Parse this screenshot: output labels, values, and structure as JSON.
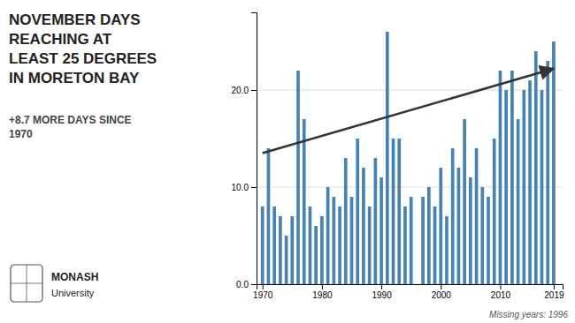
{
  "chart_data": {
    "type": "bar",
    "title": "NOVEMBER DAYS\nREACHING AT\nLEAST 25 DEGREES\nIN MORETON BAY",
    "subtitle": "+8.7 MORE DAYS SINCE\n1970",
    "annotations": [
      "Missing years: 1996",
      "MONASH",
      "University"
    ],
    "x": [
      1970,
      1971,
      1972,
      1973,
      1974,
      1975,
      1976,
      1977,
      1978,
      1979,
      1980,
      1981,
      1982,
      1983,
      1984,
      1985,
      1986,
      1987,
      1988,
      1989,
      1990,
      1991,
      1992,
      1993,
      1994,
      1995,
      1997,
      1998,
      1999,
      2000,
      2001,
      2002,
      2003,
      2004,
      2005,
      2006,
      2007,
      2008,
      2009,
      2010,
      2011,
      2012,
      2013,
      2014,
      2015,
      2016,
      2017,
      2018,
      2019
    ],
    "values": [
      8,
      14,
      8,
      7,
      5,
      7,
      22,
      17,
      8,
      6,
      7,
      10,
      9,
      8,
      13,
      9,
      15,
      12,
      8,
      13,
      11,
      26,
      15,
      15,
      8,
      9,
      9,
      10,
      8,
      12,
      7,
      14,
      12,
      17,
      11,
      14,
      10,
      9,
      15,
      22,
      20,
      22,
      17,
      20,
      21,
      24,
      20,
      23,
      25
    ],
    "trend": {
      "x": [
        1970,
        2019
      ],
      "values": [
        13.5,
        22.2
      ]
    },
    "xlim": [
      1969.0,
      2020.5
    ],
    "xticks": [
      1970,
      1980,
      1990,
      2000,
      2010,
      2019
    ],
    "ylim": [
      0,
      28
    ],
    "yticks": [
      {
        "value": 0.0,
        "label": "0.0"
      },
      {
        "value": 10.0,
        "label": "10.0"
      },
      {
        "value": 20.0,
        "label": "20.0"
      }
    ],
    "grid": true
  }
}
